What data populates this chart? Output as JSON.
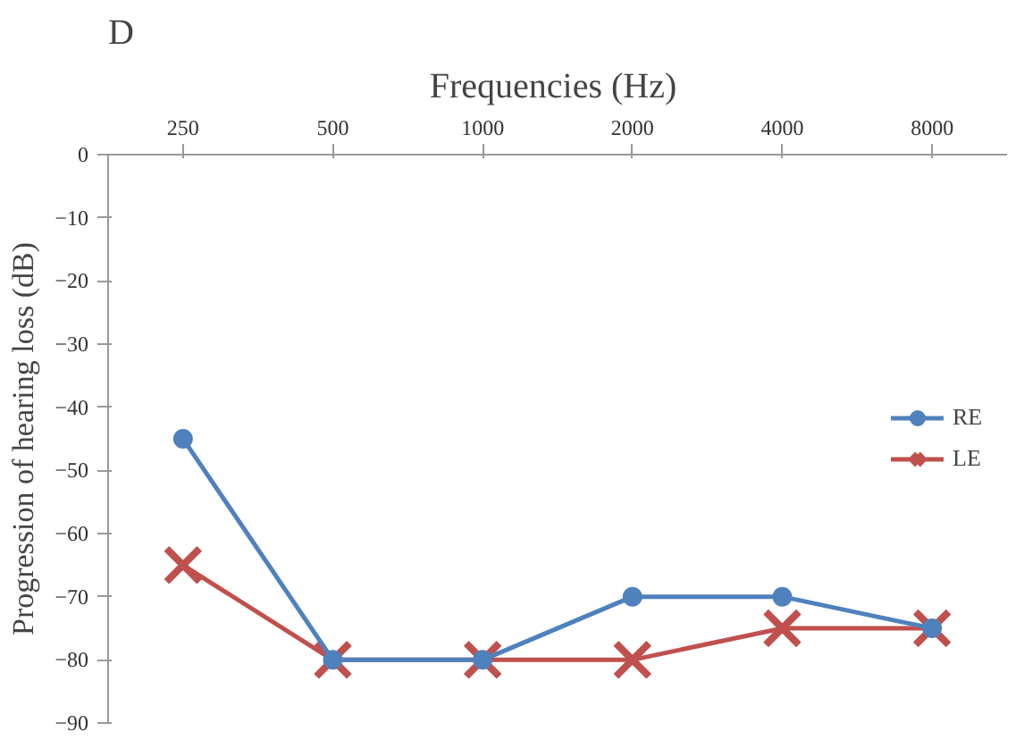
{
  "chart_data": {
    "type": "line",
    "title": "D",
    "xlabel": "Frequencies  (Hz)",
    "ylabel": "Progression of hearing loss (dB)",
    "categories": [
      "250",
      "500",
      "1000",
      "2000",
      "4000",
      "8000"
    ],
    "series": [
      {
        "name": "RE",
        "color": "#4f81bd",
        "marker": "circle",
        "values": [
          -45,
          -80,
          -80,
          -70,
          -70,
          -75
        ]
      },
      {
        "name": "LE",
        "color": "#c0504d",
        "marker": "cross",
        "values": [
          -65,
          -80,
          -80,
          -80,
          -75,
          -75
        ]
      }
    ],
    "ylim": [
      -90,
      0
    ],
    "yticks": [
      0,
      -10,
      -20,
      -30,
      -40,
      -50,
      -60,
      -70,
      -80,
      -90
    ],
    "grid": false,
    "legend": "right"
  }
}
